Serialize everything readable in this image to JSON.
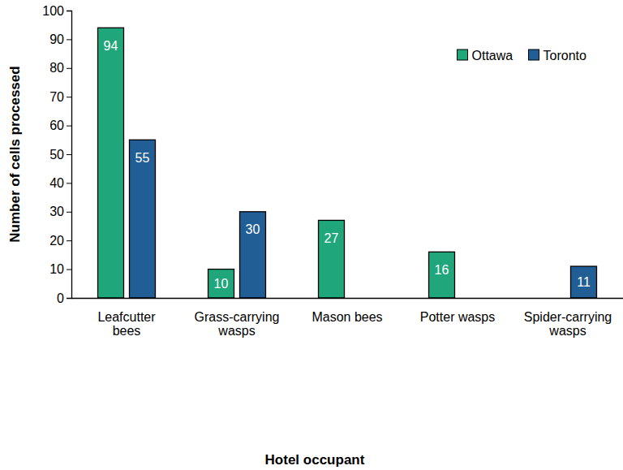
{
  "chart_data": {
    "type": "bar",
    "x_label": "Hotel occupant",
    "y_label": "Number of cells processed",
    "categories": [
      "Leafcutter bees",
      "Grass-carrying wasps",
      "Mason bees",
      "Potter wasps",
      "Spider-carrying wasps"
    ],
    "series": [
      {
        "name": "Ottawa",
        "color": "#1fa67a",
        "values": [
          94,
          10,
          27,
          16,
          null
        ]
      },
      {
        "name": "Toronto",
        "color": "#215e96",
        "values": [
          55,
          30,
          null,
          null,
          11
        ]
      }
    ],
    "ylim": [
      0,
      100
    ],
    "yticks": [
      0,
      10,
      20,
      30,
      40,
      50,
      60,
      70,
      80,
      90,
      100
    ],
    "grid": false,
    "legend": "top-right",
    "data_labels": true
  }
}
